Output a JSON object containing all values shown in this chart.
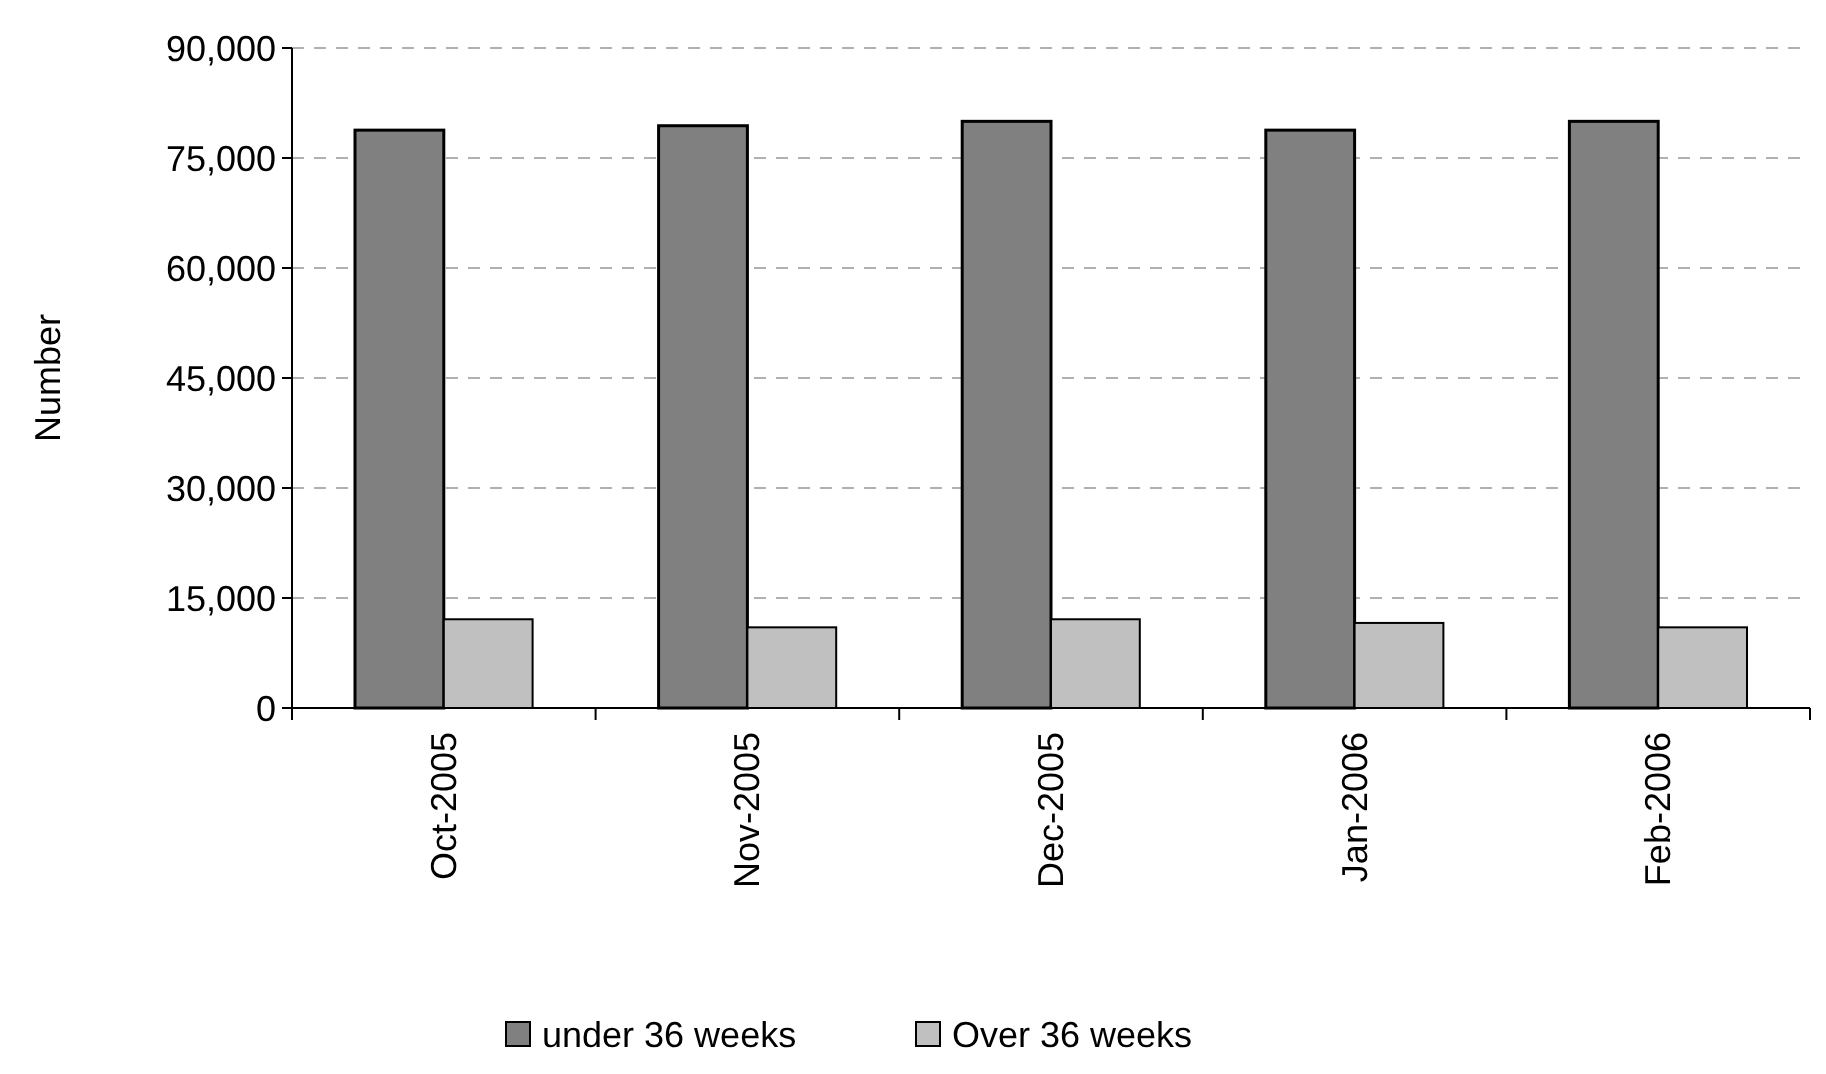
{
  "chart_data": {
    "type": "bar",
    "ylabel": "Number",
    "categories": [
      "Oct-2005",
      "Nov-2005",
      "Dec-2005",
      "Jan-2006",
      "Feb-2006"
    ],
    "series": [
      {
        "name": "under 36 weeks",
        "color": "#808080",
        "values": [
          78800,
          79400,
          80000,
          78800,
          80000
        ]
      },
      {
        "name": "Over 36 weeks",
        "color": "#c0c0c0",
        "values": [
          12100,
          11000,
          12100,
          11600,
          11000
        ]
      }
    ],
    "ylim": [
      0,
      90000
    ],
    "yticks": [
      {
        "value": 0,
        "label": "0"
      },
      {
        "value": 15000,
        "label": "15,000"
      },
      {
        "value": 30000,
        "label": "30,000"
      },
      {
        "value": 45000,
        "label": "45,000"
      },
      {
        "value": 60000,
        "label": "60,000"
      },
      {
        "value": 75000,
        "label": "75,000"
      },
      {
        "value": 90000,
        "label": "90,000"
      }
    ],
    "grid": "y",
    "legend": "bottom"
  }
}
